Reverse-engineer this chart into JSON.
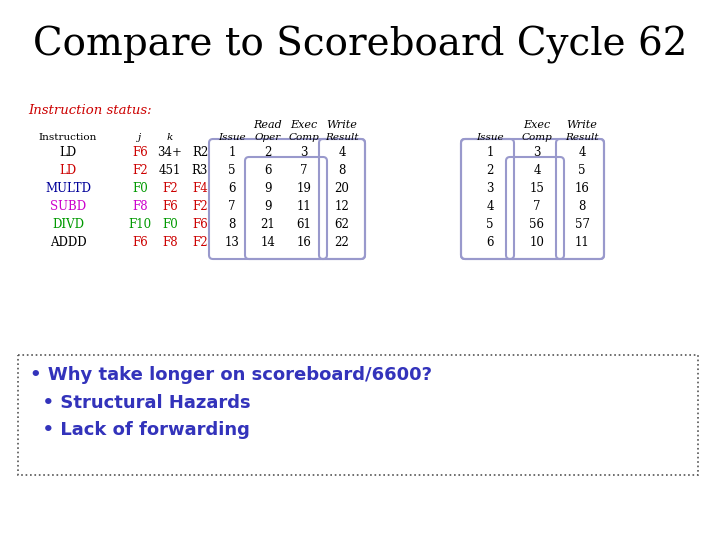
{
  "title": "Compare to Scoreboard Cycle 62",
  "title_fontsize": 28,
  "background_color": "#ffffff",
  "instruction_status_label": "Instruction status:",
  "table_left": {
    "instructions": [
      "LD",
      "LD",
      "MULTD",
      "SUBD",
      "DIVD",
      "ADDD"
    ],
    "j": [
      "F6",
      "F2",
      "F0",
      "F8",
      "F10",
      "F6"
    ],
    "k": [
      "34+",
      "451",
      "F2",
      "F6",
      "F0",
      "F8"
    ],
    "dest": [
      "R2",
      "R3",
      "F4",
      "F2",
      "F6",
      "F2"
    ],
    "issue": [
      "1",
      "5",
      "6",
      "7",
      "8",
      "13"
    ],
    "read_oper": [
      "2",
      "6",
      "9",
      "9",
      "21",
      "14"
    ],
    "exec_comp": [
      "3",
      "7",
      "19",
      "11",
      "61",
      "16"
    ],
    "write_result": [
      "4",
      "8",
      "20",
      "12",
      "62",
      "22"
    ],
    "instr_colors": [
      "#000000",
      "#cc0000",
      "#000099",
      "#cc00cc",
      "#009900",
      "#000000"
    ],
    "j_colors": [
      "#cc0000",
      "#cc0000",
      "#009900",
      "#cc00cc",
      "#009900",
      "#cc0000"
    ],
    "k_colors": [
      "#000000",
      "#000000",
      "#cc0000",
      "#cc0000",
      "#009900",
      "#cc0000"
    ],
    "dest_colors": [
      "#000000",
      "#000000",
      "#cc0000",
      "#cc0000",
      "#cc0000",
      "#cc0000"
    ]
  },
  "table_right": {
    "issue": [
      "1",
      "2",
      "3",
      "4",
      "5",
      "6"
    ],
    "exec_comp": [
      "3",
      "4",
      "15",
      "7",
      "56",
      "10"
    ],
    "write_result": [
      "4",
      "5",
      "16",
      "8",
      "57",
      "11"
    ]
  },
  "bullet_texts": [
    "• Why take longer on scoreboard/6600?",
    "  • Structural Hazards",
    "  • Lack of forwarding"
  ],
  "bullet_color": "#3333bb",
  "bullet_fontsize": 13
}
